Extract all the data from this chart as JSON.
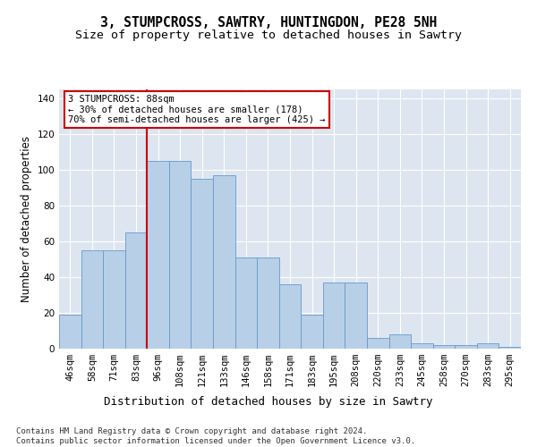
{
  "title": "3, STUMPCROSS, SAWTRY, HUNTINGDON, PE28 5NH",
  "subtitle": "Size of property relative to detached houses in Sawtry",
  "xlabel": "Distribution of detached houses by size in Sawtry",
  "ylabel": "Number of detached properties",
  "categories": [
    "46sqm",
    "58sqm",
    "71sqm",
    "83sqm",
    "96sqm",
    "108sqm",
    "121sqm",
    "133sqm",
    "146sqm",
    "158sqm",
    "171sqm",
    "183sqm",
    "195sqm",
    "208sqm",
    "220sqm",
    "233sqm",
    "245sqm",
    "258sqm",
    "270sqm",
    "283sqm",
    "295sqm"
  ],
  "bar_values": [
    19,
    55,
    55,
    65,
    105,
    105,
    95,
    97,
    51,
    51,
    36,
    19,
    37,
    37,
    6,
    8,
    3,
    2,
    2,
    3,
    1
  ],
  "bar_color": "#b8cfe8",
  "bar_edge_color": "#6699cc",
  "background_color": "#dde6f0",
  "grid_color": "#ffffff",
  "vline_color": "#cc0000",
  "vline_x": 3.5,
  "annotation_text": "3 STUMPCROSS: 88sqm\n← 30% of detached houses are smaller (178)\n70% of semi-detached houses are larger (425) →",
  "annotation_box_color": "#ffffff",
  "annotation_box_edge": "#cc0000",
  "ylim": [
    0,
    145
  ],
  "yticks": [
    0,
    20,
    40,
    60,
    80,
    100,
    120,
    140
  ],
  "footer": "Contains HM Land Registry data © Crown copyright and database right 2024.\nContains public sector information licensed under the Open Government Licence v3.0.",
  "title_fontsize": 10.5,
  "subtitle_fontsize": 9.5,
  "xlabel_fontsize": 9,
  "ylabel_fontsize": 8.5,
  "tick_fontsize": 7.5,
  "annotation_fontsize": 7.5,
  "footer_fontsize": 6.5
}
